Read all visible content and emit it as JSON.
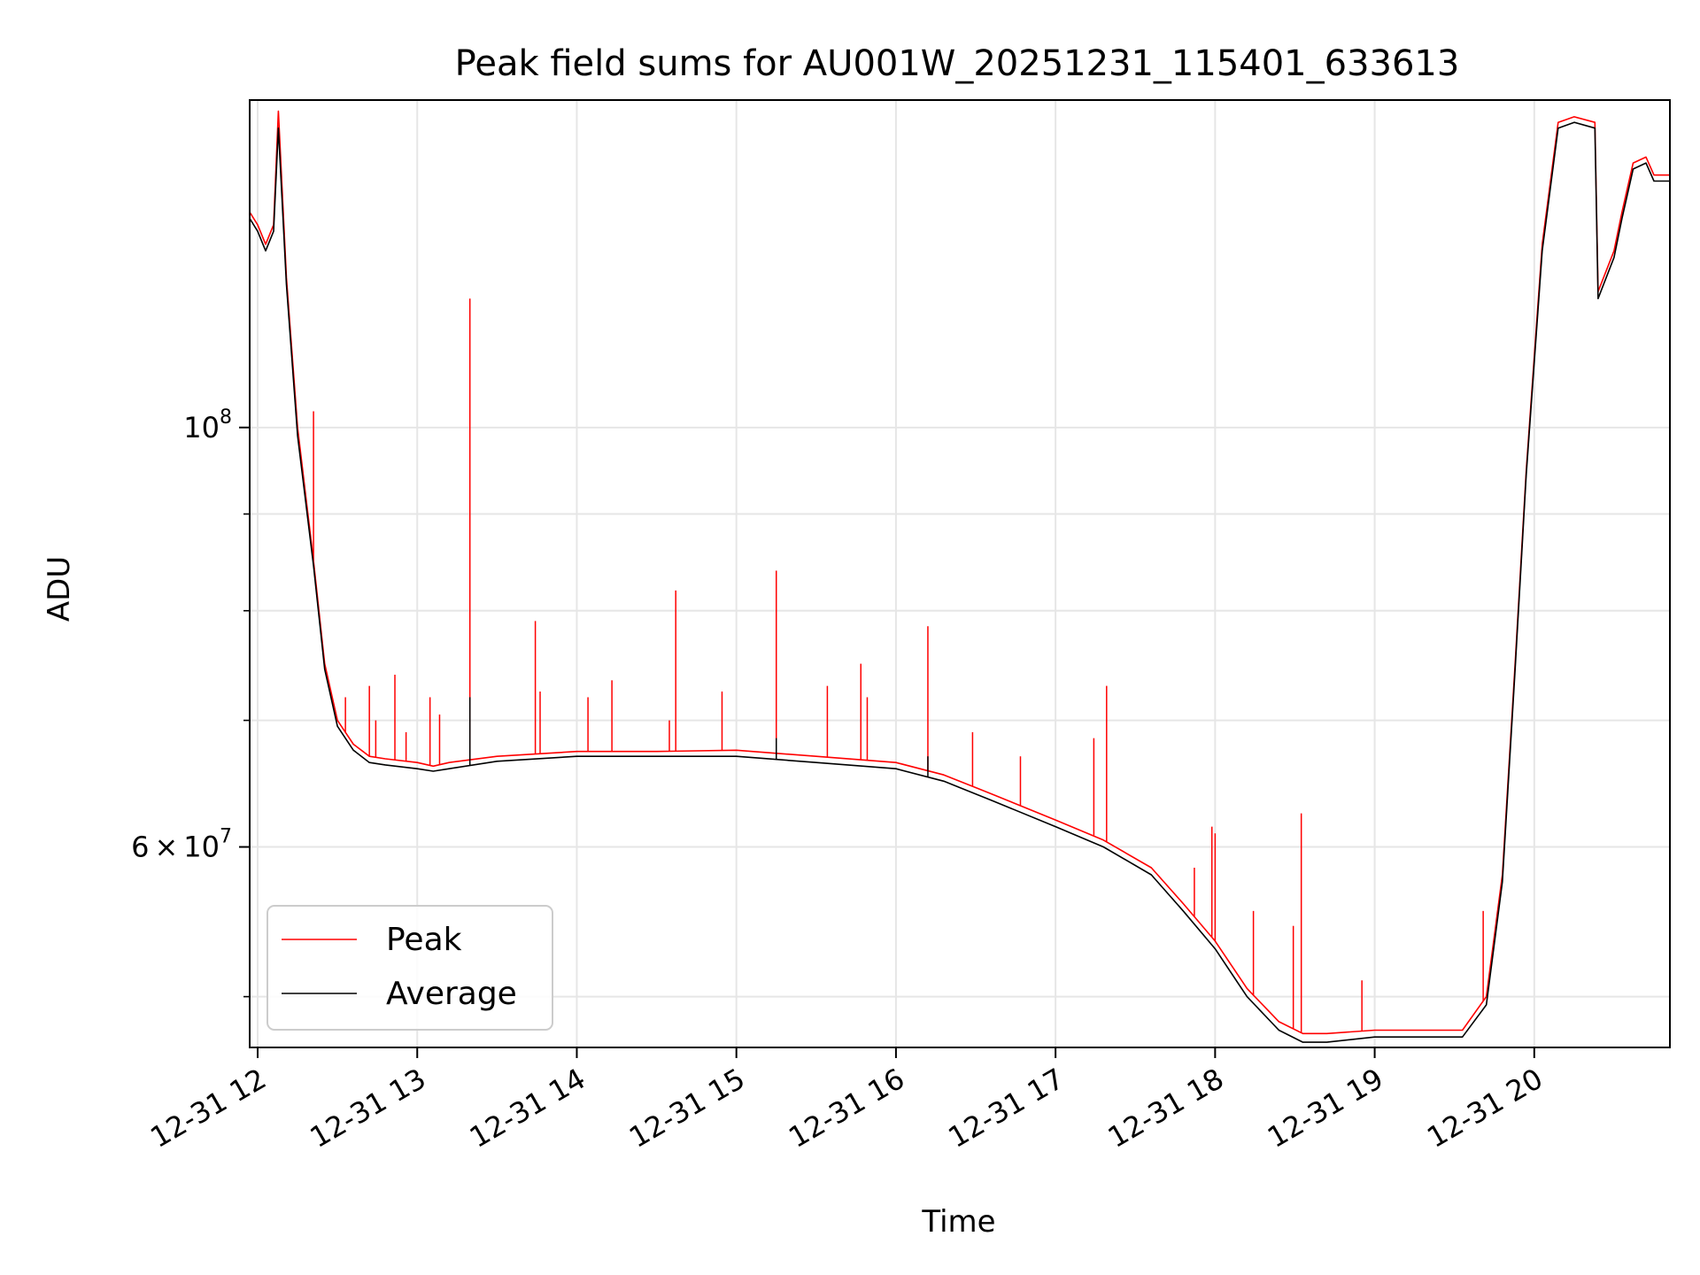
{
  "chart_data": {
    "type": "line",
    "title": "Peak field sums for AU001W_20251231_115401_633613",
    "xlabel": "Time",
    "ylabel": "ADU",
    "y_scale": "log",
    "grid": true,
    "legend_position": "lower-left",
    "x_tick_labels": [
      "12-31 12",
      "12-31 13",
      "12-31 14",
      "12-31 15",
      "12-31 16",
      "12-31 17",
      "12-31 18",
      "12-31 19",
      "12-31 20"
    ],
    "x_tick_hours": [
      12,
      13,
      14,
      15,
      16,
      17,
      18,
      19,
      20
    ],
    "xlim_hours": [
      11.95,
      20.85
    ],
    "ylim": [
      47000000,
      149000000
    ],
    "y_major_ticks": [
      {
        "value": 100000000,
        "base": "10",
        "exp": "8"
      },
      {
        "value": 60000000,
        "mant": "6",
        "base": "10",
        "exp": "7"
      }
    ],
    "y_minor_ticks": [
      50000000,
      70000000,
      80000000,
      90000000,
      200000000
    ],
    "series": [
      {
        "name": "Peak",
        "color": "#ff0000",
        "x_hours": [
          11.95,
          12.0,
          12.05,
          12.1,
          12.13,
          12.18,
          12.25,
          12.35,
          12.42,
          12.5,
          12.6,
          12.7,
          12.8,
          13.0,
          13.1,
          13.2,
          13.5,
          14.0,
          14.5,
          15.0,
          15.5,
          16.0,
          16.3,
          16.6,
          17.0,
          17.3,
          17.6,
          17.8,
          18.0,
          18.2,
          18.4,
          18.55,
          18.7,
          19.0,
          19.3,
          19.55,
          19.7,
          19.8,
          19.88,
          19.95,
          20.05,
          20.15,
          20.25,
          20.38,
          20.4,
          20.5,
          20.55,
          20.62,
          20.7,
          20.75,
          20.85
        ],
        "y": [
          130000000,
          128000000,
          125000000,
          128000000,
          147000000,
          120000000,
          100000000,
          85000000,
          75000000,
          70000000,
          68000000,
          67000000,
          66800000,
          66500000,
          66200000,
          66500000,
          67000000,
          67400000,
          67400000,
          67500000,
          67000000,
          66500000,
          65500000,
          64000000,
          62000000,
          60500000,
          58500000,
          56000000,
          53500000,
          50500000,
          48500000,
          47800000,
          47800000,
          48000000,
          48000000,
          48000000,
          50000000,
          58000000,
          75000000,
          95000000,
          125000000,
          145000000,
          146000000,
          145000000,
          118000000,
          124000000,
          130000000,
          138000000,
          139000000,
          136000000,
          136000000
        ],
        "spikes": [
          {
            "x": 12.35,
            "y": 102000000
          },
          {
            "x": 12.55,
            "y": 72000000
          },
          {
            "x": 12.7,
            "y": 73000000
          },
          {
            "x": 12.74,
            "y": 70000000
          },
          {
            "x": 12.86,
            "y": 74000000
          },
          {
            "x": 12.93,
            "y": 69000000
          },
          {
            "x": 13.08,
            "y": 72000000
          },
          {
            "x": 13.14,
            "y": 70500000
          },
          {
            "x": 13.33,
            "y": 117000000
          },
          {
            "x": 13.74,
            "y": 79000000
          },
          {
            "x": 13.77,
            "y": 72500000
          },
          {
            "x": 14.07,
            "y": 72000000
          },
          {
            "x": 14.22,
            "y": 73500000
          },
          {
            "x": 14.58,
            "y": 70000000
          },
          {
            "x": 14.62,
            "y": 82000000
          },
          {
            "x": 14.91,
            "y": 72500000
          },
          {
            "x": 15.25,
            "y": 84000000
          },
          {
            "x": 15.57,
            "y": 73000000
          },
          {
            "x": 15.78,
            "y": 75000000
          },
          {
            "x": 15.82,
            "y": 72000000
          },
          {
            "x": 16.2,
            "y": 78500000
          },
          {
            "x": 16.48,
            "y": 69000000
          },
          {
            "x": 16.78,
            "y": 67000000
          },
          {
            "x": 17.24,
            "y": 68500000
          },
          {
            "x": 17.32,
            "y": 73000000
          },
          {
            "x": 17.87,
            "y": 58500000
          },
          {
            "x": 17.98,
            "y": 61500000
          },
          {
            "x": 18.0,
            "y": 61000000
          },
          {
            "x": 18.24,
            "y": 55500000
          },
          {
            "x": 18.49,
            "y": 54500000
          },
          {
            "x": 18.54,
            "y": 62500000
          },
          {
            "x": 18.92,
            "y": 51000000
          },
          {
            "x": 19.68,
            "y": 55500000
          }
        ]
      },
      {
        "name": "Average",
        "color": "#000000",
        "x_hours": [
          11.95,
          12.0,
          12.05,
          12.1,
          12.13,
          12.18,
          12.25,
          12.35,
          12.42,
          12.5,
          12.6,
          12.7,
          12.8,
          13.0,
          13.1,
          13.2,
          13.5,
          14.0,
          14.5,
          15.0,
          15.5,
          16.0,
          16.3,
          16.6,
          17.0,
          17.3,
          17.6,
          17.8,
          18.0,
          18.2,
          18.4,
          18.55,
          18.7,
          19.0,
          19.3,
          19.55,
          19.7,
          19.8,
          19.88,
          19.95,
          20.05,
          20.15,
          20.25,
          20.38,
          20.4,
          20.5,
          20.55,
          20.62,
          20.7,
          20.75,
          20.85
        ],
        "y": [
          129000000,
          127000000,
          124000000,
          127000000,
          144000000,
          119000000,
          99000000,
          84500000,
          74500000,
          69500000,
          67500000,
          66500000,
          66300000,
          66000000,
          65800000,
          66000000,
          66600000,
          67000000,
          67000000,
          67000000,
          66500000,
          66000000,
          65000000,
          63500000,
          61500000,
          60000000,
          58000000,
          55500000,
          53000000,
          50000000,
          48000000,
          47300000,
          47300000,
          47600000,
          47600000,
          47600000,
          49500000,
          57500000,
          74500000,
          94500000,
          124000000,
          144000000,
          145000000,
          144000000,
          117000000,
          123000000,
          129000000,
          137000000,
          138000000,
          135000000,
          135000000
        ],
        "spikes": [
          {
            "x": 13.33,
            "y": 72000000
          },
          {
            "x": 15.25,
            "y": 68500000
          },
          {
            "x": 16.2,
            "y": 67000000
          }
        ]
      }
    ]
  }
}
